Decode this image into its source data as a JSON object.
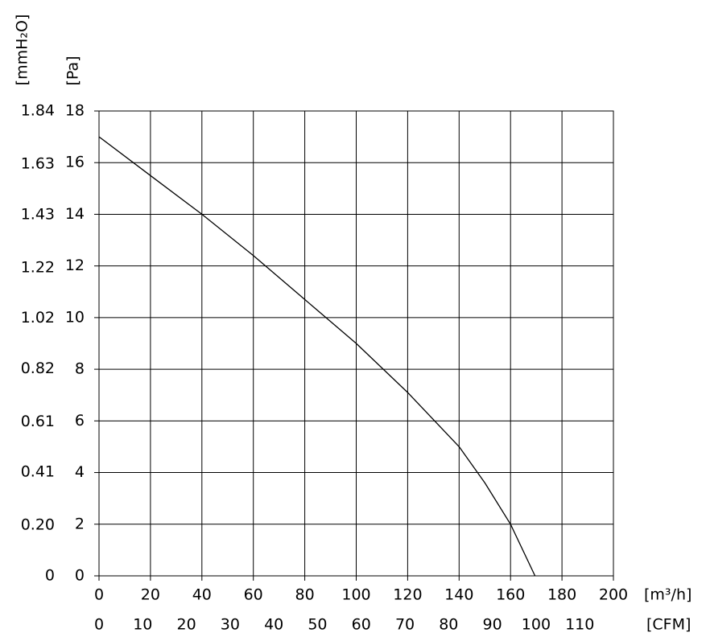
{
  "chart_data": {
    "type": "line",
    "x_label": "[m³/h]",
    "x2_label": "[CFM]",
    "y_label": "[Pa]",
    "y2_label": "[mmH₂O]",
    "x": [
      0,
      20,
      40,
      60,
      80,
      100,
      120,
      140,
      150,
      160,
      169.5
    ],
    "values": [
      17.0,
      15.5,
      14.0,
      12.4,
      10.7,
      9.0,
      7.1,
      5.0,
      3.6,
      2.0,
      0
    ],
    "color": "#000000",
    "xlim": [
      0,
      200
    ],
    "xticks": [
      0,
      20,
      40,
      60,
      80,
      100,
      120,
      140,
      160,
      180,
      200
    ],
    "x2lim": [
      0,
      117.7
    ],
    "x2ticks": [
      0,
      10,
      20,
      30,
      40,
      50,
      60,
      70,
      80,
      90,
      100,
      110
    ],
    "ylim": [
      0,
      18
    ],
    "yticks": [
      0,
      2,
      4,
      6,
      8,
      10,
      12,
      14,
      16,
      18
    ],
    "y2lim": [
      0,
      1.84
    ],
    "y2ticks": [
      0,
      {
        "value": 0.2,
        "label": "0.20"
      },
      0.41,
      0.61,
      0.82,
      1.02,
      1.22,
      1.43,
      1.63,
      1.84
    ],
    "grid": true
  }
}
